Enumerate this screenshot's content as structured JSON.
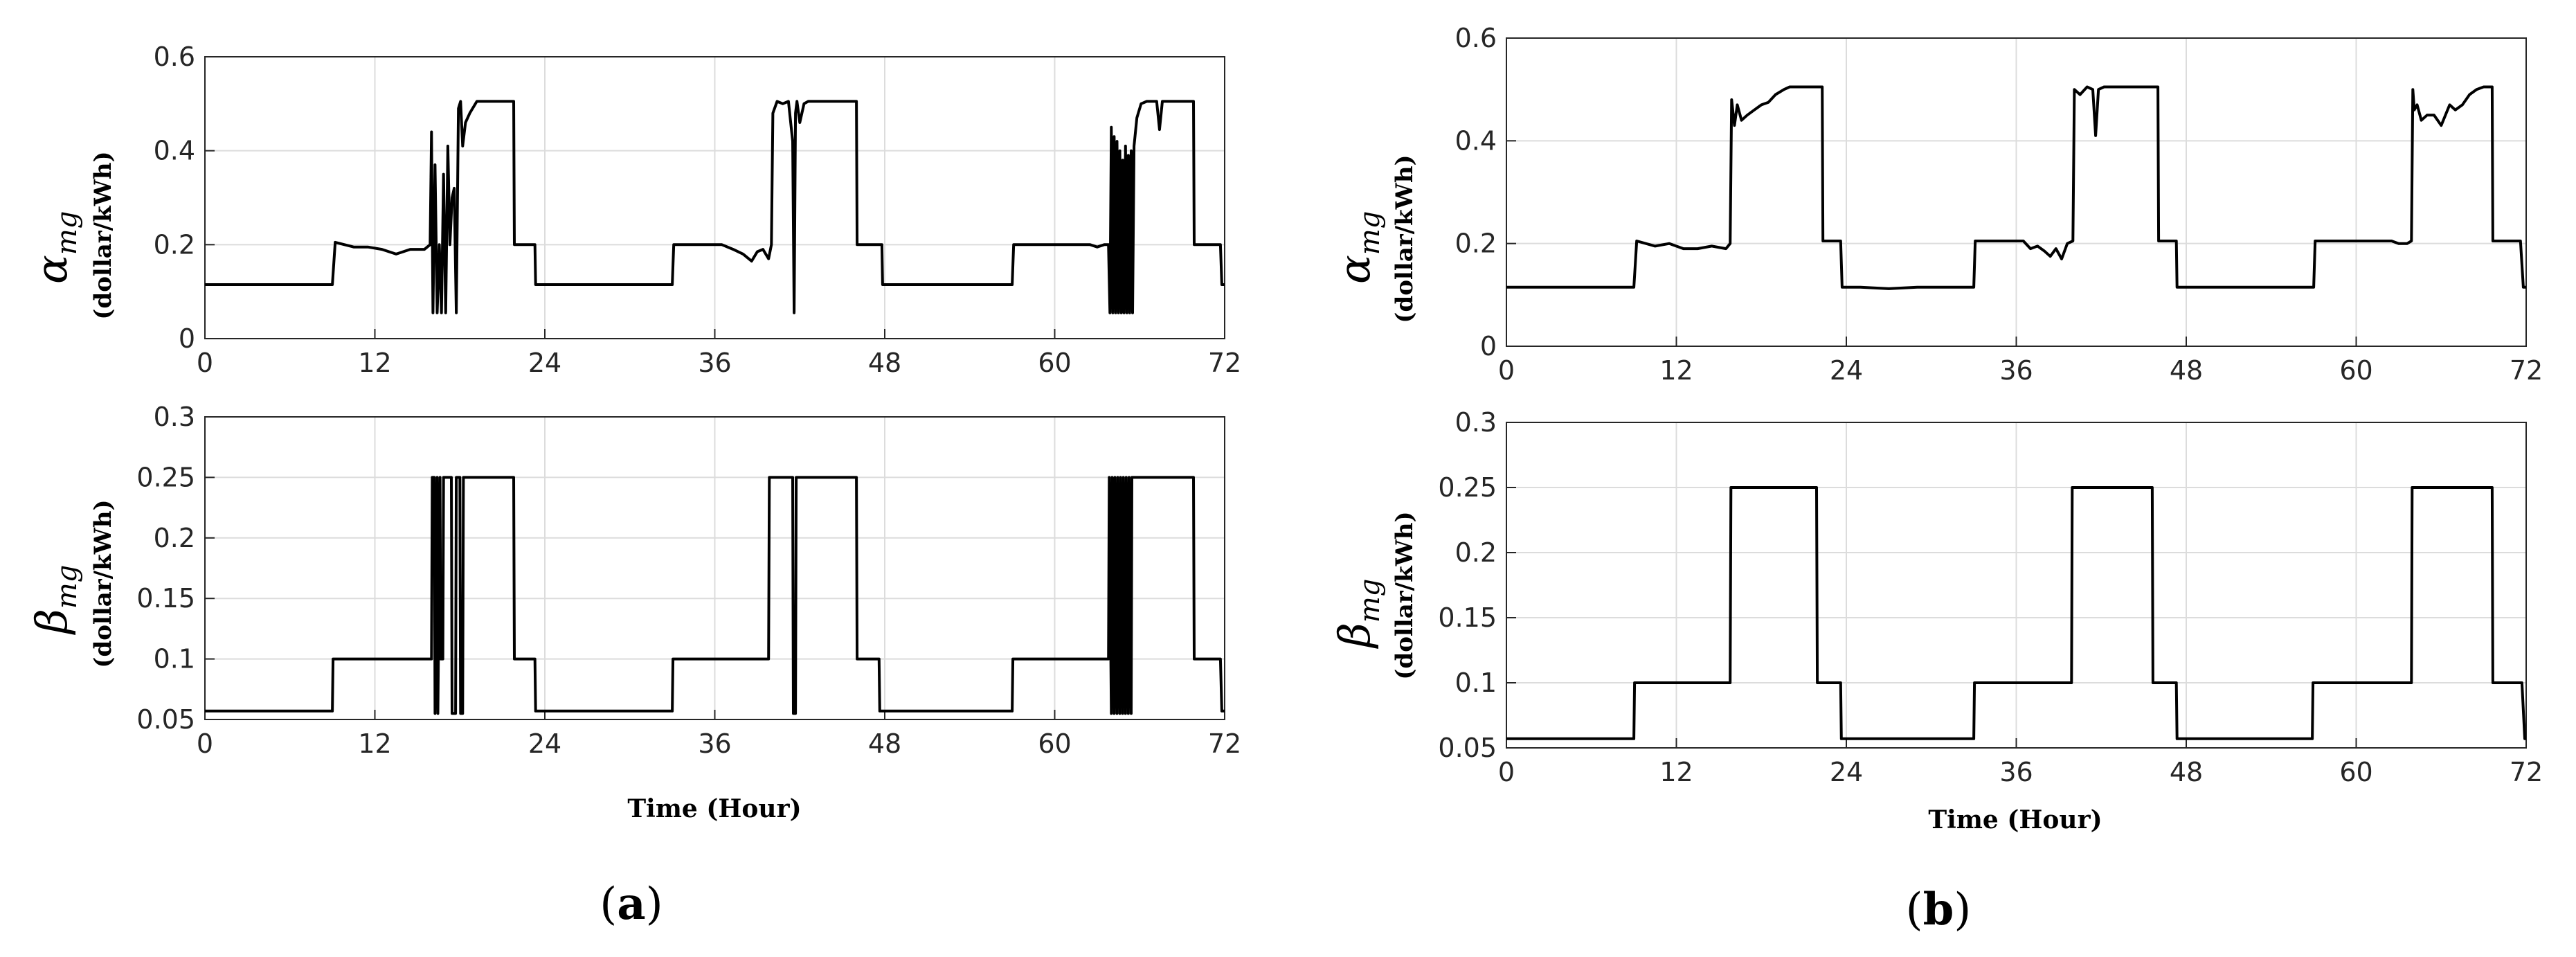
{
  "captions": [
    {
      "open": "(",
      "letter": "a",
      "close": ")"
    },
    {
      "open": "(",
      "letter": "b",
      "close": ")"
    }
  ],
  "chart_data": [
    {
      "id": "a_alpha",
      "type": "line",
      "panel": "a",
      "ylabel": {
        "main": "α",
        "sub": "mg",
        "unit": "(dollar/kWh)"
      },
      "xlabel": "",
      "xlim": [
        0,
        72
      ],
      "ylim": [
        0,
        0.6
      ],
      "xticks": [
        0,
        12,
        24,
        36,
        48,
        60,
        72
      ],
      "yticks": [
        0,
        0.2,
        0.4,
        0.6
      ],
      "ytick_labels": [
        "0",
        "0.2",
        "0.4",
        "0.6"
      ],
      "grid": true,
      "x": [
        0,
        9,
        9.2,
        10.5,
        11.5,
        12.5,
        13.5,
        14.5,
        15.5,
        15.9,
        16.0,
        16.1,
        16.25,
        16.4,
        16.55,
        16.7,
        16.85,
        17.0,
        17.15,
        17.3,
        17.45,
        17.6,
        17.75,
        17.9,
        18.05,
        18.2,
        18.4,
        18.7,
        19.2,
        21.8,
        21.85,
        23.3,
        23.35,
        33,
        33.1,
        36.5,
        37.3,
        38.0,
        38.6,
        39.0,
        39.4,
        39.8,
        40.0,
        40.1,
        40.4,
        40.8,
        41.2,
        41.5,
        41.6,
        41.7,
        41.8,
        42.0,
        42.3,
        42.6,
        43.0,
        46.0,
        46.05,
        47.8,
        47.85,
        57,
        57.1,
        62.5,
        63.0,
        63.5,
        63.8,
        63.9,
        64.0,
        64.1,
        64.2,
        64.3,
        64.4,
        64.5,
        64.6,
        64.7,
        64.8,
        64.9,
        65.0,
        65.1,
        65.2,
        65.3,
        65.4,
        65.5,
        65.6,
        65.8,
        66.1,
        66.5,
        67.2,
        67.4,
        67.6,
        69.8,
        69.85,
        71.7,
        71.8,
        72
      ],
      "y": [
        0.115,
        0.115,
        0.205,
        0.195,
        0.195,
        0.19,
        0.18,
        0.19,
        0.19,
        0.2,
        0.44,
        0.055,
        0.37,
        0.055,
        0.2,
        0.055,
        0.35,
        0.055,
        0.41,
        0.2,
        0.3,
        0.32,
        0.055,
        0.49,
        0.505,
        0.41,
        0.46,
        0.48,
        0.505,
        0.505,
        0.2,
        0.2,
        0.115,
        0.115,
        0.2,
        0.2,
        0.19,
        0.18,
        0.165,
        0.185,
        0.19,
        0.17,
        0.2,
        0.48,
        0.505,
        0.5,
        0.505,
        0.42,
        0.055,
        0.48,
        0.505,
        0.46,
        0.5,
        0.505,
        0.505,
        0.505,
        0.2,
        0.2,
        0.115,
        0.115,
        0.2,
        0.2,
        0.195,
        0.2,
        0.2,
        0.055,
        0.45,
        0.055,
        0.43,
        0.055,
        0.42,
        0.055,
        0.4,
        0.055,
        0.38,
        0.055,
        0.41,
        0.055,
        0.39,
        0.055,
        0.4,
        0.055,
        0.41,
        0.47,
        0.5,
        0.505,
        0.505,
        0.445,
        0.505,
        0.505,
        0.2,
        0.2,
        0.115,
        0.115
      ]
    },
    {
      "id": "a_beta",
      "type": "line",
      "panel": "a",
      "ylabel": {
        "main": "β",
        "sub": "mg",
        "unit": "(dollar/kWh)"
      },
      "xlabel": "Time (Hour)",
      "xlim": [
        0,
        72
      ],
      "ylim": [
        0.05,
        0.3
      ],
      "xticks": [
        0,
        12,
        24,
        36,
        48,
        60,
        72
      ],
      "yticks": [
        0.05,
        0.1,
        0.15,
        0.2,
        0.25,
        0.3
      ],
      "ytick_labels": [
        "0.05",
        "0.1",
        "0.15",
        "0.2",
        "0.25",
        "0.3"
      ],
      "grid": true,
      "x": [
        0,
        9,
        9.05,
        16,
        16.05,
        16.2,
        16.25,
        16.4,
        16.45,
        16.6,
        16.65,
        16.8,
        16.85,
        17.4,
        17.45,
        17.7,
        17.75,
        18.0,
        18.05,
        18.2,
        18.25,
        21.8,
        21.85,
        23.3,
        23.35,
        33,
        33.05,
        39.8,
        39.85,
        41.5,
        41.55,
        41.7,
        41.75,
        46.0,
        46.05,
        47.6,
        47.65,
        57,
        57.05,
        63.8,
        63.85,
        64.0,
        64.05,
        64.2,
        64.25,
        64.4,
        64.45,
        64.6,
        64.65,
        64.8,
        64.85,
        65.0,
        65.05,
        65.2,
        65.25,
        65.4,
        65.45,
        65.55,
        65.6,
        69.8,
        69.85,
        71.7,
        71.8,
        72
      ],
      "y": [
        0.057,
        0.057,
        0.1,
        0.1,
        0.25,
        0.25,
        0.055,
        0.25,
        0.055,
        0.25,
        0.1,
        0.1,
        0.25,
        0.25,
        0.055,
        0.055,
        0.25,
        0.25,
        0.055,
        0.055,
        0.25,
        0.25,
        0.1,
        0.1,
        0.057,
        0.057,
        0.1,
        0.1,
        0.25,
        0.25,
        0.055,
        0.055,
        0.25,
        0.25,
        0.1,
        0.1,
        0.057,
        0.057,
        0.1,
        0.1,
        0.25,
        0.055,
        0.25,
        0.055,
        0.25,
        0.055,
        0.25,
        0.055,
        0.25,
        0.055,
        0.25,
        0.055,
        0.25,
        0.055,
        0.25,
        0.055,
        0.25,
        0.25,
        0.25,
        0.25,
        0.1,
        0.1,
        0.057,
        0.057
      ]
    },
    {
      "id": "b_alpha",
      "type": "line",
      "panel": "b",
      "ylabel": {
        "main": "α",
        "sub": "mg",
        "unit": "(dollar/kWh)"
      },
      "xlabel": "",
      "xlim": [
        0,
        72
      ],
      "ylim": [
        0,
        0.6
      ],
      "xticks": [
        0,
        12,
        24,
        36,
        48,
        60,
        72
      ],
      "yticks": [
        0,
        0.2,
        0.4,
        0.6
      ],
      "ytick_labels": [
        "0",
        "0.2",
        "0.4",
        "0.6"
      ],
      "grid": true,
      "x": [
        0,
        9,
        9.2,
        10.5,
        11.5,
        12.5,
        13.5,
        14.5,
        15.5,
        15.8,
        15.9,
        16.1,
        16.3,
        16.6,
        17.0,
        17.5,
        18.0,
        18.5,
        19.0,
        19.6,
        20.0,
        22.3,
        22.35,
        23.6,
        23.7,
        25,
        27,
        29,
        33,
        33.1,
        36.5,
        37.0,
        37.5,
        38.0,
        38.4,
        38.8,
        39.2,
        39.6,
        40.0,
        40.1,
        40.5,
        41.0,
        41.4,
        41.6,
        41.8,
        42.2,
        46.0,
        46.05,
        47.3,
        47.35,
        57,
        57.1,
        62.5,
        63.0,
        63.6,
        63.9,
        64.0,
        64.1,
        64.3,
        64.6,
        65.0,
        65.5,
        66.0,
        66.6,
        67.0,
        67.5,
        68.0,
        68.5,
        69.0,
        69.6,
        69.65,
        71.6,
        71.8,
        72
      ],
      "y": [
        0.115,
        0.115,
        0.205,
        0.195,
        0.2,
        0.19,
        0.19,
        0.195,
        0.19,
        0.2,
        0.48,
        0.43,
        0.47,
        0.44,
        0.45,
        0.46,
        0.47,
        0.475,
        0.49,
        0.5,
        0.505,
        0.505,
        0.205,
        0.205,
        0.115,
        0.115,
        0.112,
        0.115,
        0.115,
        0.205,
        0.205,
        0.19,
        0.195,
        0.185,
        0.175,
        0.19,
        0.17,
        0.2,
        0.205,
        0.5,
        0.49,
        0.505,
        0.5,
        0.41,
        0.5,
        0.505,
        0.505,
        0.205,
        0.205,
        0.115,
        0.115,
        0.205,
        0.205,
        0.2,
        0.2,
        0.205,
        0.5,
        0.46,
        0.47,
        0.44,
        0.45,
        0.45,
        0.43,
        0.47,
        0.46,
        0.47,
        0.49,
        0.5,
        0.505,
        0.505,
        0.205,
        0.205,
        0.115,
        0.115
      ]
    },
    {
      "id": "b_beta",
      "type": "line",
      "panel": "b",
      "ylabel": {
        "main": "β",
        "sub": "mg",
        "unit": "(dollar/kWh)"
      },
      "xlabel": "Time (Hour)",
      "xlim": [
        0,
        72
      ],
      "ylim": [
        0.05,
        0.3
      ],
      "xticks": [
        0,
        12,
        24,
        36,
        48,
        60,
        72
      ],
      "yticks": [
        0.05,
        0.1,
        0.15,
        0.2,
        0.25,
        0.3
      ],
      "ytick_labels": [
        "0.05",
        "0.1",
        "0.15",
        "0.2",
        "0.25",
        "0.3"
      ],
      "grid": true,
      "x": [
        0,
        9,
        9.05,
        15.8,
        15.85,
        21.9,
        21.95,
        23.6,
        23.65,
        33,
        33.05,
        39.9,
        39.95,
        45.6,
        45.65,
        47.3,
        47.35,
        56.9,
        56.95,
        63.9,
        63.95,
        69.6,
        69.65,
        71.7,
        71.9,
        72
      ],
      "y": [
        0.057,
        0.057,
        0.1,
        0.1,
        0.25,
        0.25,
        0.1,
        0.1,
        0.057,
        0.057,
        0.1,
        0.1,
        0.25,
        0.25,
        0.1,
        0.1,
        0.057,
        0.057,
        0.1,
        0.1,
        0.25,
        0.25,
        0.1,
        0.1,
        0.057,
        0.057
      ]
    }
  ]
}
